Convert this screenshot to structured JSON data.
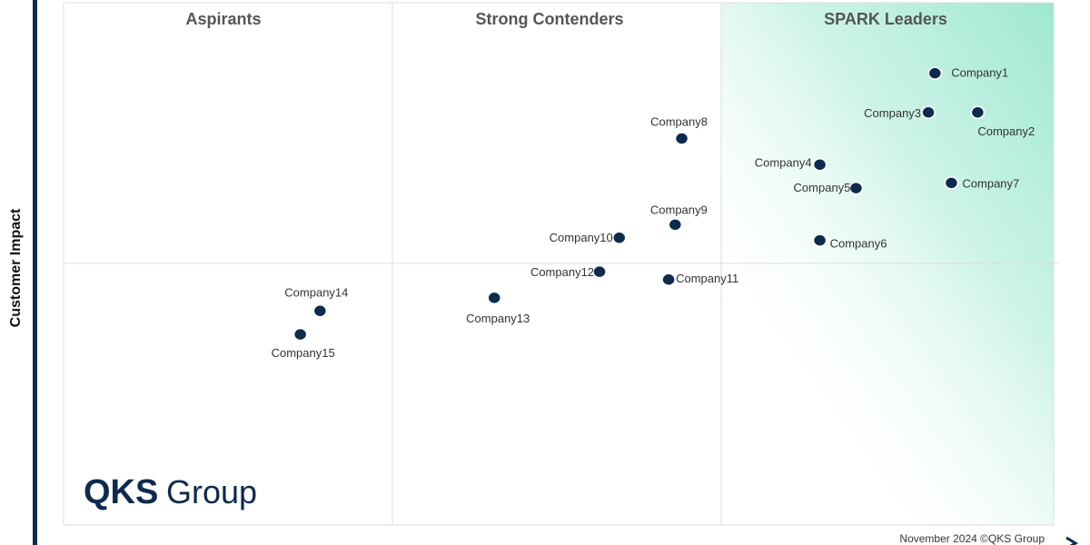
{
  "chart_data": {
    "type": "scatter",
    "ylabel": "Customer Impact",
    "xlabel": "",
    "quadrants": [
      "Aspirants",
      "Strong Contenders",
      "SPARK Leaders"
    ],
    "footer": "November 2024 ©QKS Group",
    "logo": "QKS Group",
    "colors": {
      "point": "#0e2a4d",
      "leader_gradient": "#9fe8d2",
      "axis_bar": "#0e2a4d",
      "grid": "#d8d8d8"
    },
    "xlim": [
      0,
      3
    ],
    "ylim": [
      0,
      2
    ],
    "points": [
      {
        "name": "Company1",
        "x": 2.65,
        "y": 1.73
      },
      {
        "name": "Company2",
        "x": 2.78,
        "y": 1.58
      },
      {
        "name": "Company3",
        "x": 2.63,
        "y": 1.58
      },
      {
        "name": "Company4",
        "x": 2.3,
        "y": 1.38
      },
      {
        "name": "Company5",
        "x": 2.41,
        "y": 1.29
      },
      {
        "name": "Company6",
        "x": 2.3,
        "y": 1.09
      },
      {
        "name": "Company7",
        "x": 2.7,
        "y": 1.31
      },
      {
        "name": "Company8",
        "x": 1.88,
        "y": 1.48
      },
      {
        "name": "Company9",
        "x": 1.86,
        "y": 1.15
      },
      {
        "name": "Company10",
        "x": 1.69,
        "y": 1.1
      },
      {
        "name": "Company11",
        "x": 1.84,
        "y": 0.94
      },
      {
        "name": "Company12",
        "x": 1.63,
        "y": 0.97
      },
      {
        "name": "Company13",
        "x": 1.31,
        "y": 0.87
      },
      {
        "name": "Company14",
        "x": 0.78,
        "y": 0.82
      },
      {
        "name": "Company15",
        "x": 0.72,
        "y": 0.73
      }
    ]
  }
}
